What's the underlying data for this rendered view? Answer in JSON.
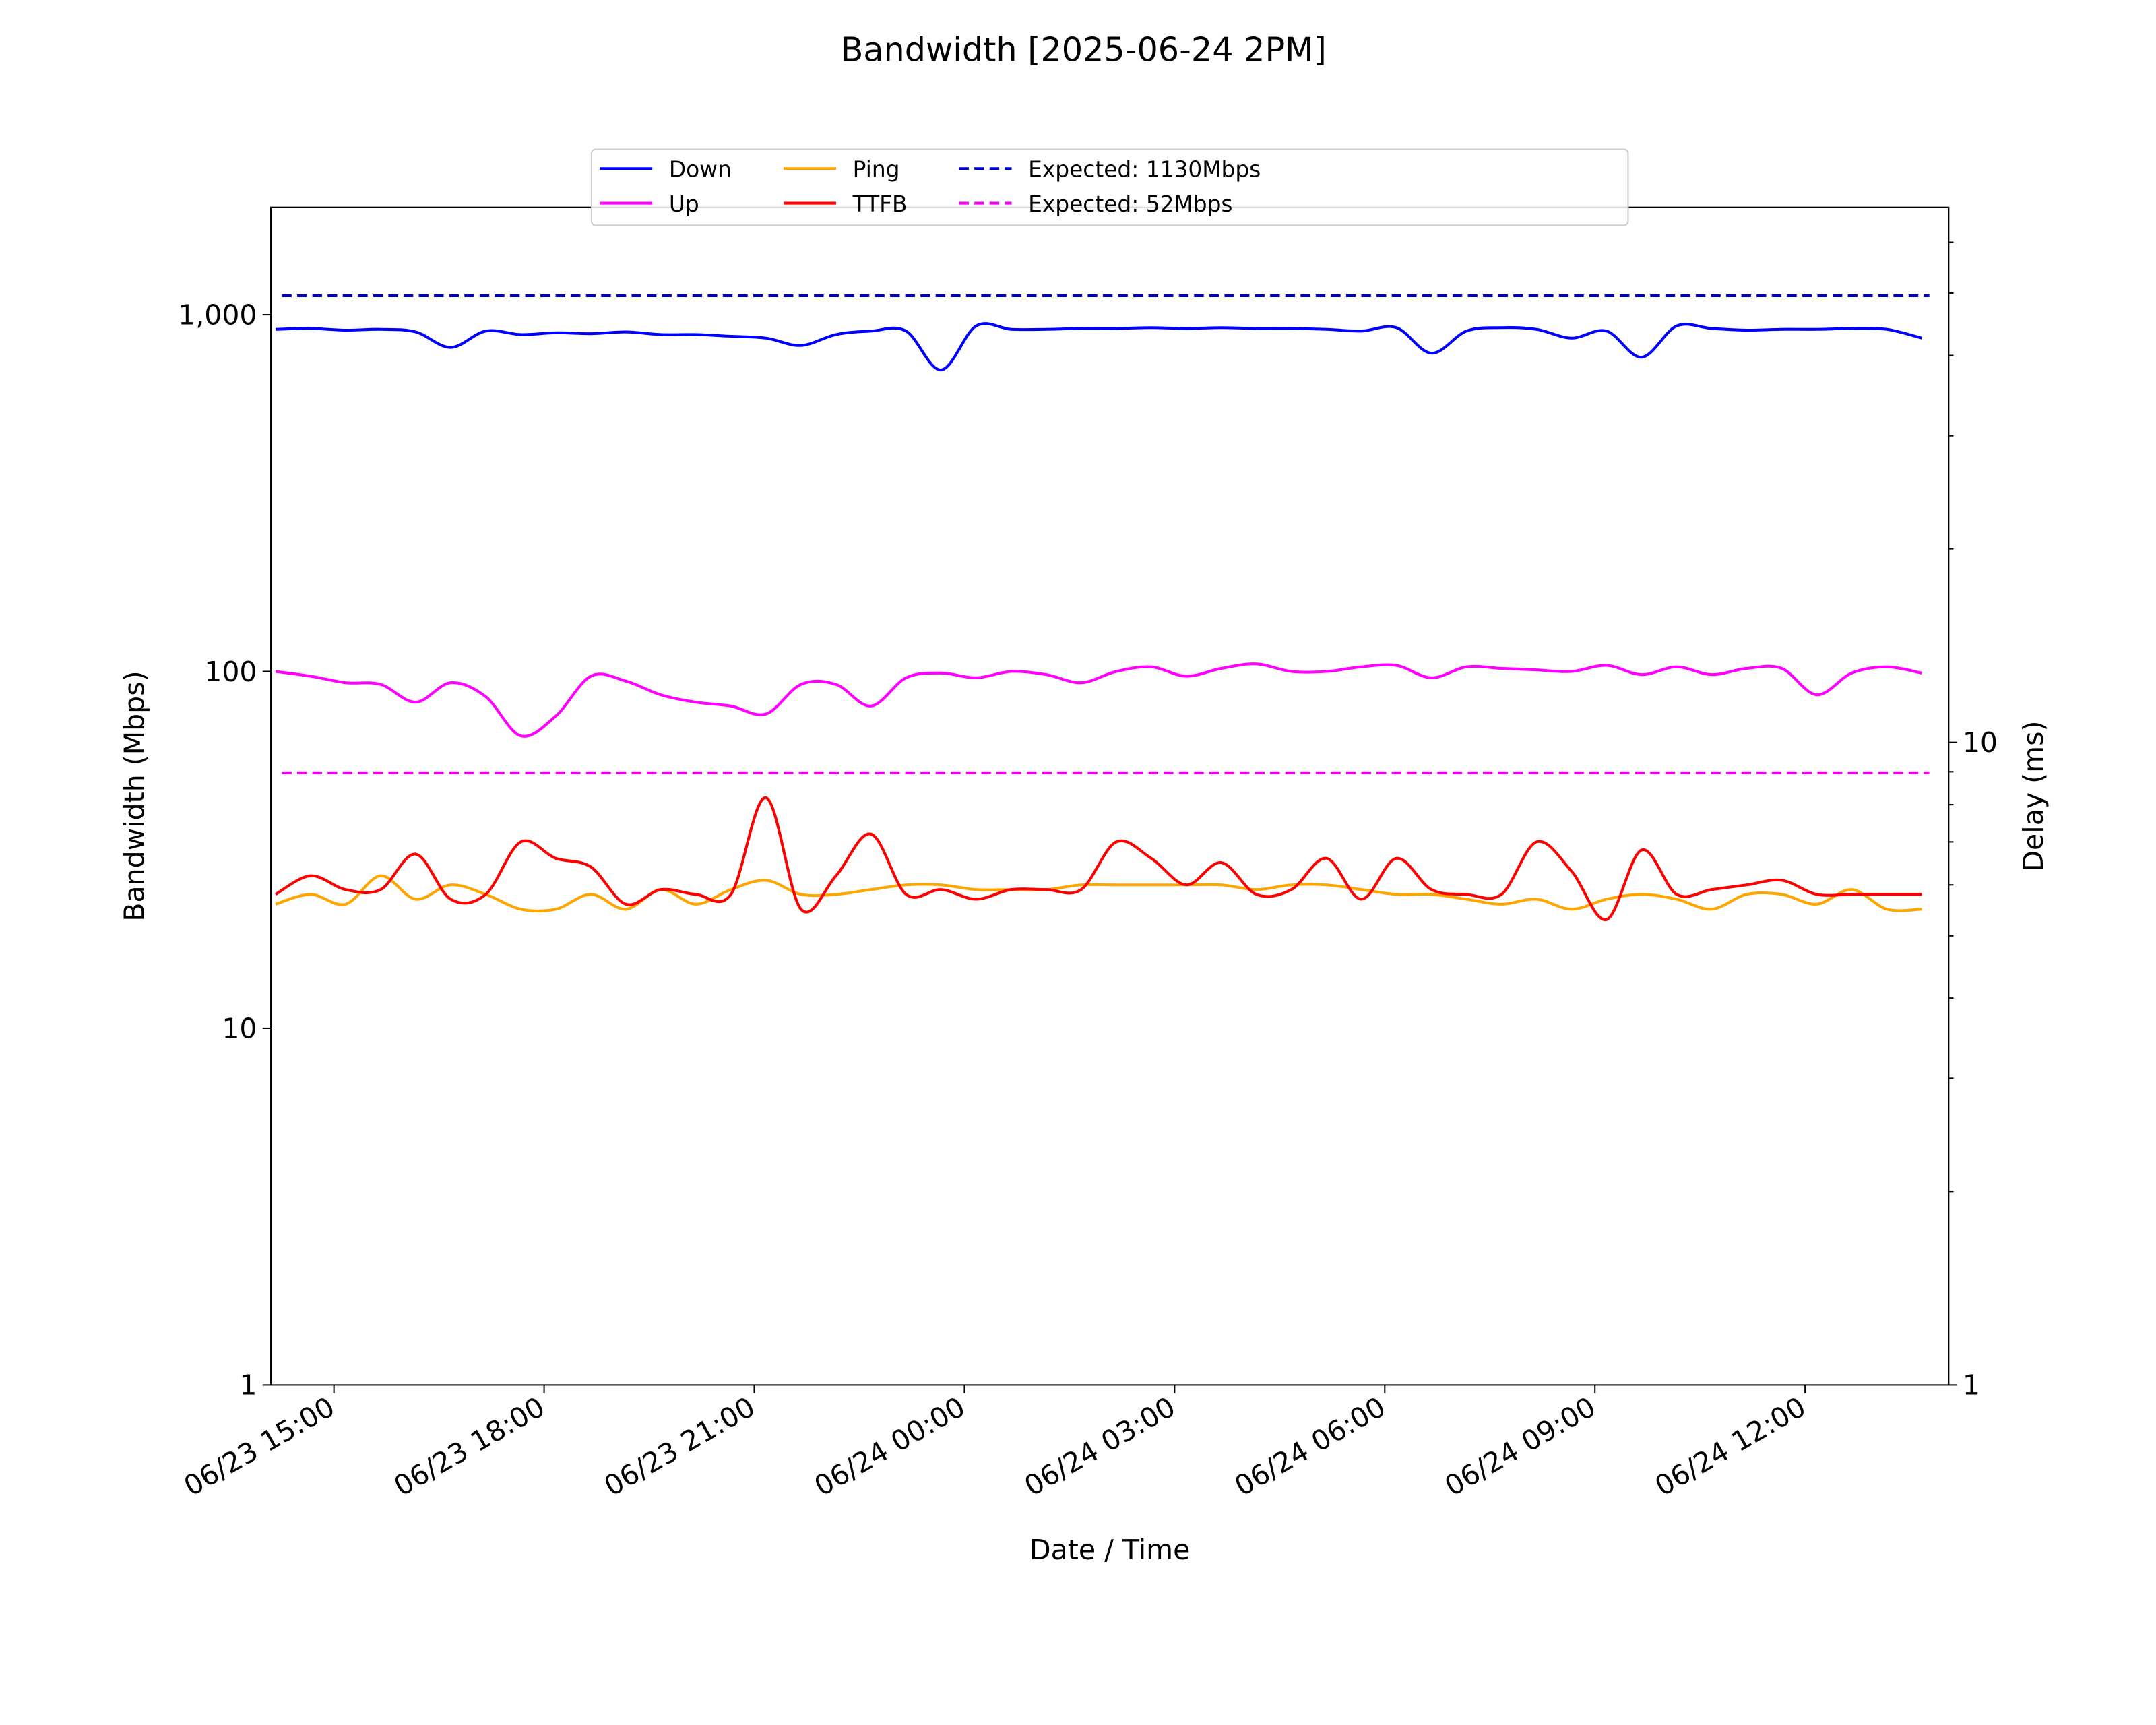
{
  "chart_data": {
    "type": "line",
    "title": "Bandwidth [2025-06-24 2PM]",
    "x_label": "Date / Time",
    "y_label": "Bandwidth (Mbps)",
    "y2_label": "Delay (ms)",
    "log_scale": true,
    "legend": "upper center",
    "xlim": [
      "06/23 14:06",
      "06/24 14:03"
    ],
    "xticks": [
      "06/23 15:00",
      "06/23 18:00",
      "06/23 21:00",
      "06/24 00:00",
      "06/24 03:00",
      "06/24 06:00",
      "06/24 09:00",
      "06/24 12:00"
    ],
    "ylim": [
      1,
      2000
    ],
    "yticks": [
      1,
      10,
      100,
      {
        "value": 1000,
        "label": "1,000"
      }
    ],
    "y2lim": [
      1,
      68
    ],
    "y2ticks": [
      1,
      10
    ],
    "y2minor": [
      2,
      3,
      4,
      5,
      6,
      7,
      8,
      9,
      20,
      30,
      40,
      50,
      60
    ],
    "x": [
      "06/23 14:10",
      "06/23 14:40",
      "06/23 15:10",
      "06/23 15:40",
      "06/23 16:10",
      "06/23 16:40",
      "06/23 17:10",
      "06/23 17:40",
      "06/23 18:10",
      "06/23 18:40",
      "06/23 19:10",
      "06/23 19:40",
      "06/23 20:10",
      "06/23 20:40",
      "06/23 21:10",
      "06/23 21:40",
      "06/23 22:10",
      "06/23 22:40",
      "06/23 23:10",
      "06/23 23:40",
      "06/24 00:10",
      "06/24 00:40",
      "06/24 01:10",
      "06/24 01:40",
      "06/24 02:10",
      "06/24 02:40",
      "06/24 03:10",
      "06/24 03:40",
      "06/24 04:10",
      "06/24 04:40",
      "06/24 05:10",
      "06/24 05:40",
      "06/24 06:10",
      "06/24 06:40",
      "06/24 07:10",
      "06/24 07:40",
      "06/24 08:10",
      "06/24 08:40",
      "06/24 09:10",
      "06/24 09:40",
      "06/24 10:10",
      "06/24 10:40",
      "06/24 11:10",
      "06/24 11:40",
      "06/24 12:10",
      "06/24 12:40",
      "06/24 13:10",
      "06/24 13:40"
    ],
    "series": [
      {
        "name": "Down",
        "color": "#0000ff",
        "values": [
          910,
          915,
          905,
          910,
          895,
          810,
          900,
          880,
          890,
          885,
          895,
          880,
          880,
          870,
          860,
          820,
          880,
          900,
          900,
          700,
          930,
          910,
          910,
          915,
          915,
          920,
          915,
          920,
          915,
          915,
          910,
          900,
          920,
          780,
          900,
          920,
          910,
          860,
          900,
          760,
          930,
          915,
          905,
          910,
          910,
          915,
          910,
          860
        ]
      },
      {
        "name": "Up",
        "color": "#ff00ff",
        "values": [
          100,
          97,
          93,
          92,
          82,
          93,
          85,
          66,
          75,
          97,
          94,
          86,
          82,
          80,
          76,
          92,
          92,
          80,
          96,
          99,
          96,
          100,
          98,
          93,
          100,
          103,
          97,
          102,
          105,
          100,
          100,
          103,
          104,
          96,
          103,
          102,
          101,
          100,
          104,
          98,
          103,
          98,
          102,
          102,
          86,
          99,
          103,
          99
        ]
      },
      {
        "name": "Ping",
        "color": "#ffa500",
        "axis": "y2",
        "values": [
          5.6,
          5.8,
          5.6,
          6.2,
          5.7,
          6.0,
          5.8,
          5.5,
          5.5,
          5.8,
          5.5,
          5.9,
          5.6,
          5.9,
          6.1,
          5.8,
          5.8,
          5.9,
          6.0,
          6.0,
          5.9,
          5.9,
          5.9,
          6.0,
          6.0,
          6.0,
          6.0,
          6.0,
          5.9,
          6.0,
          6.0,
          5.9,
          5.8,
          5.8,
          5.7,
          5.6,
          5.7,
          5.5,
          5.7,
          5.8,
          5.7,
          5.5,
          5.8,
          5.8,
          5.6,
          5.9,
          5.5,
          5.5
        ]
      },
      {
        "name": "TTFB",
        "color": "#ff0000",
        "axis": "y2",
        "values": [
          5.8,
          6.2,
          5.9,
          5.9,
          6.7,
          5.7,
          5.8,
          7.0,
          6.6,
          6.4,
          5.6,
          5.9,
          5.8,
          5.8,
          8.2,
          5.5,
          6.2,
          7.2,
          5.8,
          5.9,
          5.7,
          5.9,
          5.9,
          5.9,
          7.0,
          6.6,
          6.0,
          6.5,
          5.8,
          5.9,
          6.6,
          5.7,
          6.6,
          5.9,
          5.8,
          5.8,
          7.0,
          6.3,
          5.3,
          6.8,
          5.8,
          5.9,
          6.0,
          6.1,
          5.8,
          5.8,
          5.8,
          5.8
        ]
      }
    ],
    "reference_lines": [
      {
        "name": "Expected: 1130Mbps",
        "color": "#0000cc",
        "value": 1130,
        "style": "dashed"
      },
      {
        "name": "Expected: 52Mbps",
        "color": "#ee00ee",
        "value": 52,
        "style": "dashed"
      }
    ]
  }
}
